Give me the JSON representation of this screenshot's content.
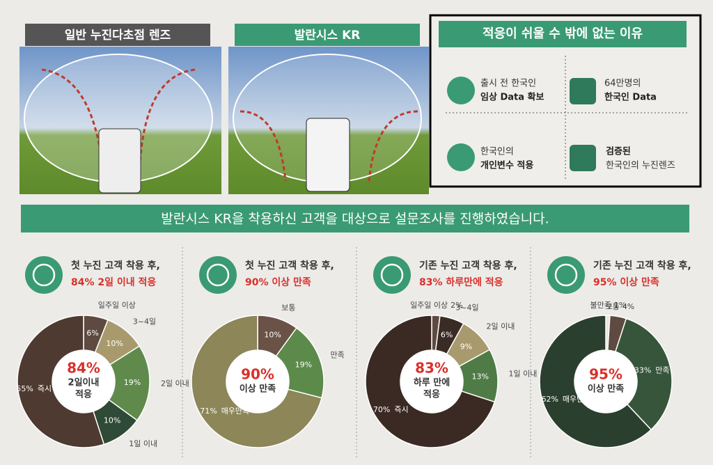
{
  "lens_compare": {
    "left": "일반 누진다초점 렌즈",
    "right": "발란시스 KR"
  },
  "reasons": {
    "title": "적응이 쉬울 수 밖에 없는 이유",
    "items": [
      {
        "line1": "출시 전 한국인",
        "line2": "임상 Data 확보"
      },
      {
        "line1": "64만명의",
        "line2": "한국인 Data"
      },
      {
        "line1": "한국인의",
        "line2": "개인변수 적용"
      },
      {
        "line1": "검증된",
        "line2": "한국인의 누진렌즈"
      }
    ]
  },
  "survey_banner": "발란시스 KR을 착용하신 고객을 대상으로 설문조사를 진행하였습니다.",
  "surveys": [
    {
      "line1": "첫 누진 고객 착용 후,",
      "line2": "84% 2일 이내 적응",
      "center": "84%",
      "center_sub": [
        "2일이내",
        "적응"
      ],
      "segments": [
        {
          "name": "일주일 이상",
          "value": 6,
          "value_label": "6%",
          "color": "#5e4a40"
        },
        {
          "name": "3~4일",
          "value": 10,
          "value_label": "10%",
          "color": "#a99a6e"
        },
        {
          "name": "2일 이내",
          "value": 19,
          "value_label": "19%",
          "color": "#5f8a4c"
        },
        {
          "name": "1일 이내",
          "value": 10,
          "value_label": "10%",
          "color": "#2f4a36"
        },
        {
          "name": "즉시",
          "value": 55,
          "value_label": "55%",
          "color": "#4e3a30"
        }
      ]
    },
    {
      "line1": "첫 누진 고객 착용 후,",
      "line2": "90% 이상 만족",
      "center": "90%",
      "center_sub": [
        "이상 만족"
      ],
      "segments": [
        {
          "name": "보통",
          "value": 10,
          "value_label": "10%",
          "color": "#6b5247"
        },
        {
          "name": "만족",
          "value": 19,
          "value_label": "19%",
          "color": "#5c8a4a"
        },
        {
          "name": "매우만족",
          "value": 71,
          "value_label": "71%",
          "color": "#8c8658"
        }
      ]
    },
    {
      "line1": "기존 누진 고객 착용 후,",
      "line2": "83% 하루만에 적응",
      "center": "83%",
      "center_sub": [
        "하루 만에",
        "적응"
      ],
      "segments": [
        {
          "name": "일주일 이상",
          "value": 2,
          "value_label": "2%",
          "color": "#5e4a40"
        },
        {
          "name": "3~4일",
          "value": 6,
          "value_label": "6%",
          "color": "#3a2b25"
        },
        {
          "name": "2일 이내",
          "value": 9,
          "value_label": "9%",
          "color": "#a99a6e"
        },
        {
          "name": "1일 이내",
          "value": 13,
          "value_label": "13%",
          "color": "#4f7c46"
        },
        {
          "name": "즉시",
          "value": 70,
          "value_label": "70%",
          "color": "#3b2a24"
        }
      ]
    },
    {
      "line1": "기존 누진 고객 착용 후,",
      "line2": "95% 이상 만족",
      "center": "95%",
      "center_sub": [
        "이상 만족"
      ],
      "segments": [
        {
          "name": "불만족",
          "value": 1,
          "value_label": "1%",
          "color": "#e8e4dc"
        },
        {
          "name": "보통",
          "value": 4,
          "value_label": "4%",
          "color": "#5e4a40"
        },
        {
          "name": "만족",
          "value": 33,
          "value_label": "33%",
          "color": "#37553a"
        },
        {
          "name": "매우만족",
          "value": 62,
          "value_label": "62%",
          "color": "#2b3f2e"
        }
      ]
    }
  ]
}
